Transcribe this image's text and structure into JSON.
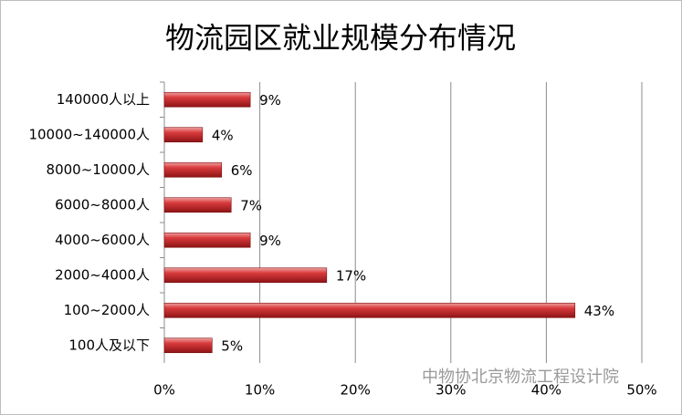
{
  "chart_data": {
    "type": "bar",
    "orientation": "horizontal",
    "title": "物流园区就业规模分布情况",
    "categories": [
      "140000人以上",
      "10000~140000人",
      "8000~10000人",
      "6000~8000人",
      "4000~6000人",
      "2000~4000人",
      "100~2000人",
      "100人及以下"
    ],
    "values": [
      9,
      4,
      6,
      7,
      9,
      17,
      43,
      5
    ],
    "value_labels": [
      "9%",
      "4%",
      "6%",
      "7%",
      "9%",
      "17%",
      "43%",
      "5%"
    ],
    "color": "#c0282b",
    "xlim": [
      0,
      50
    ],
    "xticks": [
      {
        "value": 0,
        "label": "0%"
      },
      {
        "value": 10,
        "label": "10%"
      },
      {
        "value": 20,
        "label": "20%"
      },
      {
        "value": 30,
        "label": "30%"
      },
      {
        "value": 40,
        "label": "40%"
      },
      {
        "value": 50,
        "label": "50%"
      }
    ],
    "grid": true,
    "watermark": "中物协北京物流工程设计院"
  }
}
